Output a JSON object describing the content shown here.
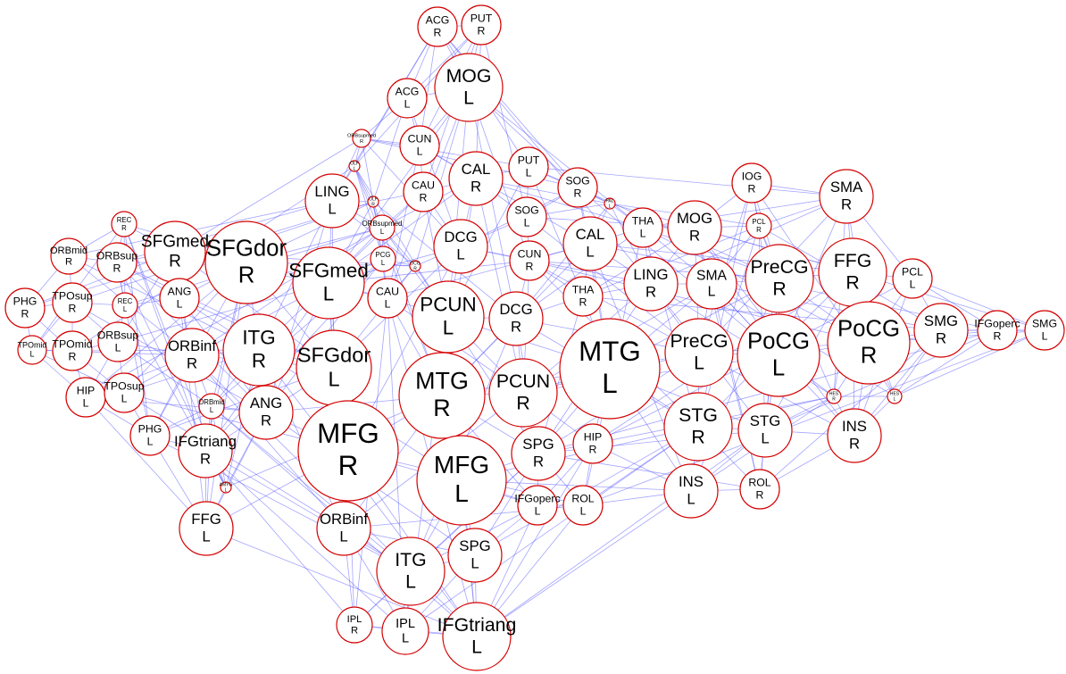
{
  "nodes": [
    {
      "name": "ACG",
      "side": "R"
    },
    {
      "name": "PUT",
      "side": "R"
    },
    {
      "name": "MOG",
      "side": "L"
    },
    {
      "name": "ACG",
      "side": "L"
    },
    {
      "name": "ORBsupmed",
      "side": "R"
    },
    {
      "name": "CUN",
      "side": "L"
    },
    {
      "name": "OLF",
      "side": "L"
    },
    {
      "name": "CAL",
      "side": "R"
    },
    {
      "name": "PUT",
      "side": "L"
    },
    {
      "name": "SOG",
      "side": "R"
    },
    {
      "name": "IOG",
      "side": "R"
    },
    {
      "name": "SMA",
      "side": "R"
    },
    {
      "name": "LING",
      "side": "L"
    },
    {
      "name": "OLF",
      "side": "R"
    },
    {
      "name": "CAU",
      "side": "R"
    },
    {
      "name": "PAL",
      "side": "L"
    },
    {
      "name": "REC",
      "side": "R"
    },
    {
      "name": "ORBsupmed",
      "side": "L"
    },
    {
      "name": "SOG",
      "side": "L"
    },
    {
      "name": "THA",
      "side": "L"
    },
    {
      "name": "MOG",
      "side": "R"
    },
    {
      "name": "PCL",
      "side": "R"
    },
    {
      "name": "SFGmed",
      "side": "R"
    },
    {
      "name": "ORBmid",
      "side": "R"
    },
    {
      "name": "ORBsup",
      "side": "R"
    },
    {
      "name": "SFGdor",
      "side": "R"
    },
    {
      "name": "SFGmed",
      "side": "L"
    },
    {
      "name": "DCG",
      "side": "L"
    },
    {
      "name": "CAL",
      "side": "L"
    },
    {
      "name": "PCG",
      "side": "L"
    },
    {
      "name": "OCG",
      "side": "R"
    },
    {
      "name": "CUN",
      "side": "R"
    },
    {
      "name": "FFG",
      "side": "R"
    },
    {
      "name": "PCL",
      "side": "L"
    },
    {
      "name": "ANG",
      "side": "L"
    },
    {
      "name": "REC",
      "side": "L"
    },
    {
      "name": "PHG",
      "side": "R"
    },
    {
      "name": "TPOsup",
      "side": "R"
    },
    {
      "name": "CAU",
      "side": "L"
    },
    {
      "name": "PCUN",
      "side": "L"
    },
    {
      "name": "THA",
      "side": "R"
    },
    {
      "name": "LING",
      "side": "R"
    },
    {
      "name": "SMA",
      "side": "L"
    },
    {
      "name": "PreCG",
      "side": "R"
    },
    {
      "name": "DCG",
      "side": "R"
    },
    {
      "name": "ORBsup",
      "side": "L"
    },
    {
      "name": "TPOmid",
      "side": "L"
    },
    {
      "name": "TPOmid",
      "side": "R"
    },
    {
      "name": "ORBinf",
      "side": "R"
    },
    {
      "name": "ITG",
      "side": "R"
    },
    {
      "name": "SFGdor",
      "side": "L"
    },
    {
      "name": "MTG",
      "side": "L"
    },
    {
      "name": "PreCG",
      "side": "L"
    },
    {
      "name": "PoCG",
      "side": "L"
    },
    {
      "name": "PoCG",
      "side": "R"
    },
    {
      "name": "SMG",
      "side": "R"
    },
    {
      "name": "IFGoperc",
      "side": "R"
    },
    {
      "name": "SMG",
      "side": "L"
    },
    {
      "name": "MTG",
      "side": "R"
    },
    {
      "name": "PCUN",
      "side": "R"
    },
    {
      "name": "HIP",
      "side": "L"
    },
    {
      "name": "TPOsup",
      "side": "L"
    },
    {
      "name": "ORBmid",
      "side": "L"
    },
    {
      "name": "ANG",
      "side": "R"
    },
    {
      "name": "HES",
      "side": "R"
    },
    {
      "name": "HES",
      "side": "L"
    },
    {
      "name": "PHG",
      "side": "L"
    },
    {
      "name": "IFGtriang",
      "side": "R"
    },
    {
      "name": "MFG",
      "side": "R"
    },
    {
      "name": "HIP",
      "side": "R"
    },
    {
      "name": "STG",
      "side": "R"
    },
    {
      "name": "STG",
      "side": "L"
    },
    {
      "name": "INS",
      "side": "R"
    },
    {
      "name": "SPG",
      "side": "R"
    },
    {
      "name": "MFG",
      "side": "L"
    },
    {
      "name": "AMYG",
      "side": "L"
    },
    {
      "name": "IFGoperc",
      "side": "L"
    },
    {
      "name": "ROL",
      "side": "L"
    },
    {
      "name": "INS",
      "side": "L"
    },
    {
      "name": "ROL",
      "side": "R"
    },
    {
      "name": "FFG",
      "side": "L"
    },
    {
      "name": "ORBinf",
      "side": "L"
    },
    {
      "name": "SPG",
      "side": "L"
    },
    {
      "name": "ITG",
      "side": "L"
    },
    {
      "name": "IPL",
      "side": "R"
    },
    {
      "name": "IPL",
      "side": "L"
    },
    {
      "name": "IFGtriang",
      "side": "L"
    }
  ]
}
